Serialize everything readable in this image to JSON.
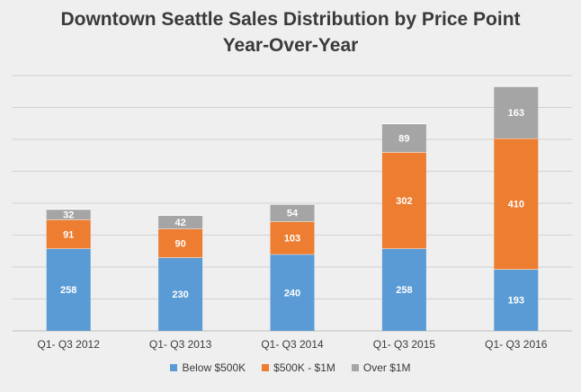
{
  "chart_data": {
    "type": "bar",
    "stacked": true,
    "title": "Downtown Seattle Sales Distribution by Price Point",
    "subtitle": "Year-Over-Year",
    "categories": [
      "Q1- Q3 2012",
      "Q1- Q3 2013",
      "Q1- Q3 2014",
      "Q1- Q3 2015",
      "Q1- Q3 2016"
    ],
    "series": [
      {
        "name": "Below $500K",
        "color": "#5b9bd5",
        "values": [
          258,
          230,
          240,
          258,
          193
        ]
      },
      {
        "name": "$500K - $1M",
        "color": "#ed7d31",
        "values": [
          91,
          90,
          103,
          302,
          410
        ]
      },
      {
        "name": "Over $1M",
        "color": "#a5a5a5",
        "values": [
          32,
          42,
          54,
          89,
          163
        ]
      }
    ],
    "ylim": [
      0,
      800
    ],
    "y_gridlines": true,
    "y_tick_labels_visible": false,
    "legend_position": "bottom",
    "xlabel": "",
    "ylabel": ""
  }
}
